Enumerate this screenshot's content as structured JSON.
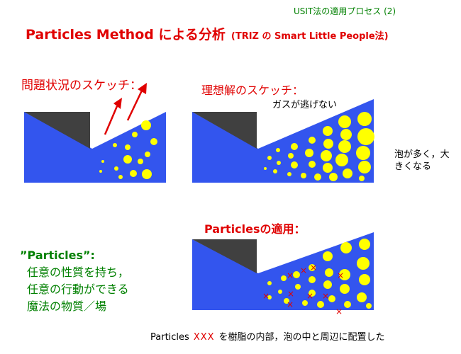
{
  "header": {
    "ref": "USIT法の適用プロセス (2)"
  },
  "title": {
    "main": "Particles Method による分析",
    "sub": "(TRIZ の Smart Little People法)"
  },
  "panels": {
    "problem": {
      "caption": "問題状況のスケッチ："
    },
    "ideal": {
      "caption": "理想解のスケッチ：",
      "gas_note": "ガスが逃げない",
      "foam_note": "泡が多く，大きくなる"
    },
    "applied": {
      "caption": "Particlesの適用："
    }
  },
  "particles_definition": {
    "title": "”Particles”:",
    "lines": [
      "任意の性質を持ち，",
      "任意の行動ができる",
      "魔法の物質／場"
    ]
  },
  "footer": {
    "label": "Particles",
    "marks": "XXX",
    "text": "を樹脂の内部，泡の中と周辺に配置した"
  },
  "colors": {
    "resin": "#3355ee",
    "mold": "#404040",
    "bubble": "#ffff00",
    "particle_mark": "#e00000",
    "caption_red": "#e00000",
    "definition_green": "#008000"
  }
}
